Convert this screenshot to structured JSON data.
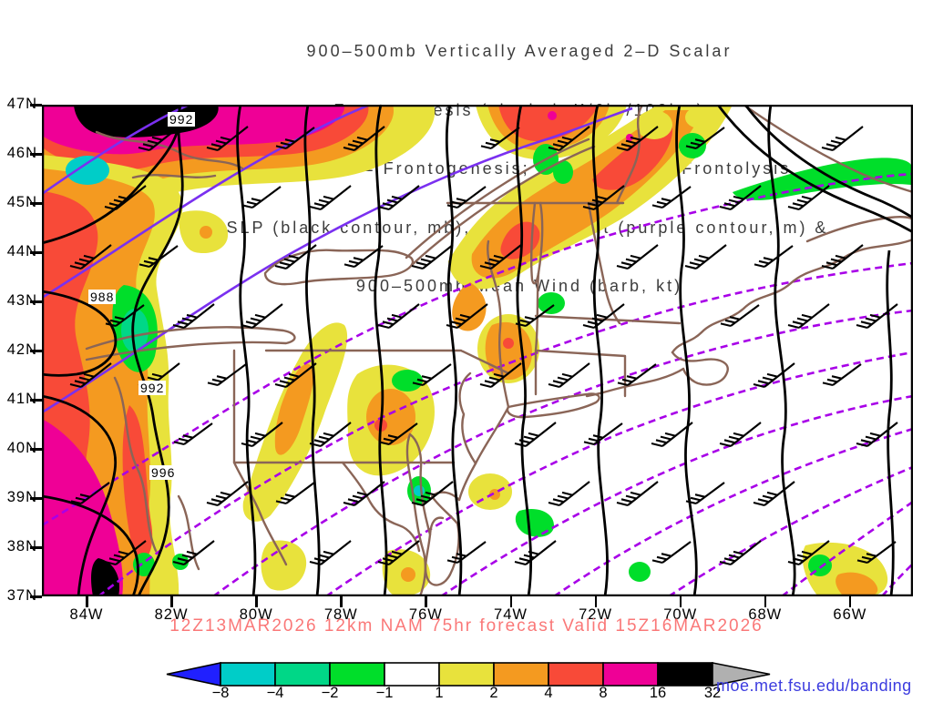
{
  "title": {
    "lines": [
      "900–500mb Vertically Averaged 2–D Scalar",
      "Frontogenesis (shaded, K/6hr/100km)",
      "Yellow/Red = Frontogenesis;  Green/Blue = Frontolysis",
      "MSLP (black contour, mb), 700mb height (purple contour, m) &",
      "900–500mb Mean Wind (barb, kt)"
    ]
  },
  "axes": {
    "lat": [
      "47N",
      "46N",
      "45N",
      "44N",
      "43N",
      "42N",
      "41N",
      "40N",
      "39N",
      "38N",
      "37N"
    ],
    "lon": [
      "84W",
      "82W",
      "80W",
      "78W",
      "76W",
      "74W",
      "72W",
      "70W",
      "68W",
      "66W"
    ]
  },
  "map": {
    "mslp_labels": [
      "992",
      "988",
      "992",
      "996"
    ]
  },
  "colorbar": {
    "values": [
      "−8",
      "−4",
      "−2",
      "−1",
      "1",
      "2",
      "4",
      "8",
      "16",
      "32"
    ],
    "segment_colors": [
      "#00cdc8",
      "#00d787",
      "#00de2a",
      "#ffffff",
      "#e8e23c",
      "#f49a20",
      "#f84a38",
      "#ef0096",
      "#000000"
    ],
    "left_arrow_color": "#2020ff",
    "right_arrow_color": "#b0b0b0"
  },
  "footer": {
    "forecast": "12Z13MAR2026 12km NAM 75hr forecast Valid 15Z16MAR2026",
    "link": "moe.met.fsu.edu/banding"
  },
  "colors": {
    "title_text": "#3d3d3d",
    "forecast_text": "#fa7878",
    "link_text": "#3c3cdf",
    "mslp_contour": "#000000",
    "height_contour_dashed": "#a800e8",
    "height_contour_solid": "#7a30f0",
    "geography": "#8a6557",
    "frontogenesis_yellow": "#e8e23c",
    "frontogenesis_orange": "#f49a20",
    "frontogenesis_red": "#f84a38",
    "frontogenesis_magenta": "#ef0096",
    "frontogenesis_extreme": "#000000",
    "frontolysis_green": "#00de2a",
    "frontolysis_teal": "#00d787",
    "frontolysis_cyan": "#00cdc8"
  }
}
